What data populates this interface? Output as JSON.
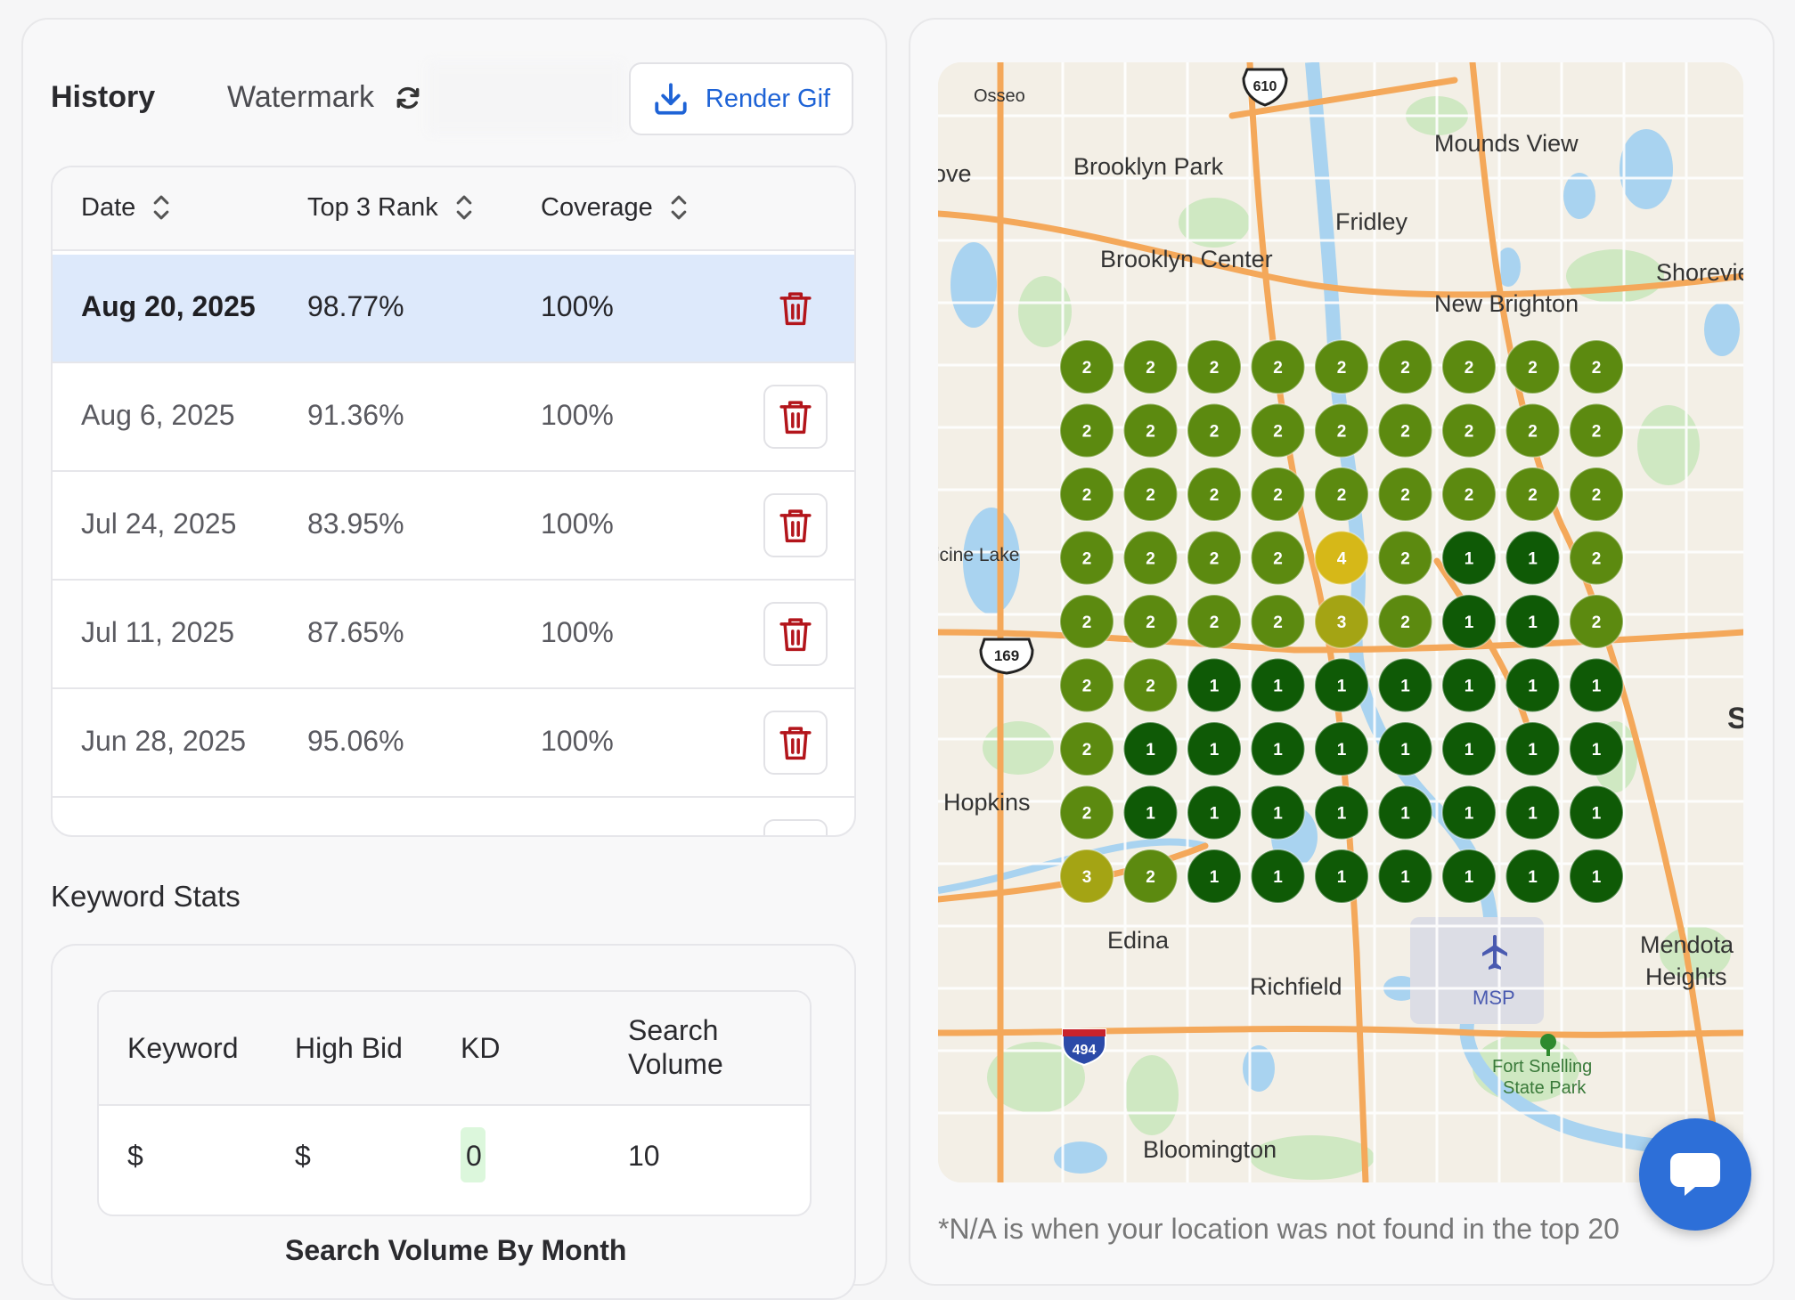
{
  "history": {
    "title": "History",
    "watermark_label": "Watermark",
    "render_label": "Render Gif",
    "columns": [
      "Date",
      "Top 3 Rank",
      "Coverage"
    ],
    "rows": [
      {
        "date": "Aug 20, 2025",
        "rank": "98.77%",
        "coverage": "100%",
        "selected": true
      },
      {
        "date": "Aug 6, 2025",
        "rank": "91.36%",
        "coverage": "100%"
      },
      {
        "date": "Jul 24, 2025",
        "rank": "83.95%",
        "coverage": "100%"
      },
      {
        "date": "Jul 11, 2025",
        "rank": "87.65%",
        "coverage": "100%"
      },
      {
        "date": "Jun 28, 2025",
        "rank": "95.06%",
        "coverage": "100%"
      }
    ]
  },
  "keyword_stats": {
    "title": "Keyword Stats",
    "headers": {
      "keyword": "Keyword",
      "high_bid": "High Bid",
      "kd": "KD",
      "search_volume_l1": "Search",
      "search_volume_l2": "Volume"
    },
    "row": {
      "keyword": "$",
      "high_bid": "$",
      "kd": "0",
      "search_volume": "10"
    },
    "next_title": "Search Volume By Month"
  },
  "map": {
    "places": [
      "Osseo",
      "Brooklyn Park",
      "Mounds View",
      "Fridley",
      "Brooklyn Center",
      "Shoreview",
      "New Brighton",
      "Medicine Lake",
      "Hopkins",
      "Edina",
      "Richfield",
      "MSP",
      "Mendota",
      "Heights",
      "Fort Snelling",
      "State Park",
      "Bloomington",
      "ove",
      "S"
    ],
    "shields": [
      "610",
      "169",
      "494"
    ],
    "grid": [
      [
        2,
        2,
        2,
        2,
        2,
        2,
        2,
        2,
        2
      ],
      [
        2,
        2,
        2,
        2,
        2,
        2,
        2,
        2,
        2
      ],
      [
        2,
        2,
        2,
        2,
        2,
        2,
        2,
        2,
        2
      ],
      [
        2,
        2,
        2,
        2,
        4,
        2,
        1,
        1,
        2
      ],
      [
        2,
        2,
        2,
        2,
        3,
        2,
        1,
        1,
        2
      ],
      [
        2,
        2,
        1,
        1,
        1,
        1,
        1,
        1,
        1
      ],
      [
        2,
        1,
        1,
        1,
        1,
        1,
        1,
        1,
        1
      ],
      [
        2,
        1,
        1,
        1,
        1,
        1,
        1,
        1,
        1
      ],
      [
        3,
        2,
        1,
        1,
        1,
        1,
        1,
        1,
        1
      ]
    ],
    "rank_colors": {
      "1": "#0f5a06",
      "2": "#5c8a10",
      "3": "#a4a414",
      "4": "#d6b818"
    }
  },
  "footnote": "*N/A is when your location was not found in the top 20"
}
